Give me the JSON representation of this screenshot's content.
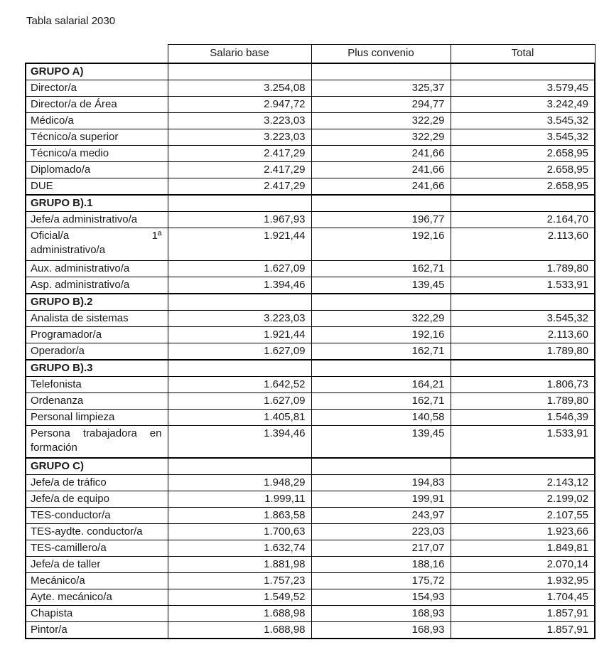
{
  "page": {
    "title": "Tabla salarial 2030"
  },
  "colors": {
    "background": "#ffffff",
    "text": "#1a1a1a",
    "border": "#000000"
  },
  "table": {
    "columns": [
      "Salario base",
      "Plus convenio",
      "Total"
    ],
    "sections": [
      {
        "group": "GRUPO A)",
        "rows": [
          {
            "label": "Director/a",
            "base": "3.254,08",
            "plus": "325,37",
            "total": "3.579,45"
          },
          {
            "label": "Director/a de Área",
            "base": "2.947,72",
            "plus": "294,77",
            "total": "3.242,49"
          },
          {
            "label": "Médico/a",
            "base": "3.223,03",
            "plus": "322,29",
            "total": "3.545,32"
          },
          {
            "label": "Técnico/a superior",
            "base": "3.223,03",
            "plus": "322,29",
            "total": "3.545,32"
          },
          {
            "label": "Técnico/a medio",
            "base": "2.417,29",
            "plus": "241,66",
            "total": "2.658,95"
          },
          {
            "label": "Diplomado/a",
            "base": "2.417,29",
            "plus": "241,66",
            "total": "2.658,95"
          },
          {
            "label": "DUE",
            "base": "2.417,29",
            "plus": "241,66",
            "total": "2.658,95"
          }
        ]
      },
      {
        "group": "GRUPO B).1",
        "rows": [
          {
            "label": "Jefe/a administrativo/a",
            "base": "1.967,93",
            "plus": "196,77",
            "total": "2.164,70"
          },
          {
            "label": "Oficial/a 1ª administrativo/a",
            "label_lines": [
              "Oficial/a 1ª",
              "administrativo/a"
            ],
            "base": "1.921,44",
            "plus": "192,16",
            "total": "2.113,60"
          },
          {
            "label": "Aux. administrativo/a",
            "base": "1.627,09",
            "plus": "162,71",
            "total": "1.789,80"
          },
          {
            "label": "Asp. administrativo/a",
            "base": "1.394,46",
            "plus": "139,45",
            "total": "1.533,91"
          }
        ]
      },
      {
        "group": "GRUPO B).2",
        "rows": [
          {
            "label": "Analista de sistemas",
            "base": "3.223,03",
            "plus": "322,29",
            "total": "3.545,32"
          },
          {
            "label": "Programador/a",
            "base": "1.921,44",
            "plus": "192,16",
            "total": "2.113,60"
          },
          {
            "label": "Operador/a",
            "base": "1.627,09",
            "plus": "162,71",
            "total": "1.789,80"
          }
        ]
      },
      {
        "group": "GRUPO B).3",
        "rows": [
          {
            "label": "Telefonista",
            "base": "1.642,52",
            "plus": "164,21",
            "total": "1.806,73"
          },
          {
            "label": "Ordenanza",
            "base": "1.627,09",
            "plus": "162,71",
            "total": "1.789,80"
          },
          {
            "label": "Personal limpieza",
            "base": "1.405,81",
            "plus": "140,58",
            "total": "1.546,39"
          },
          {
            "label": "Persona trabajadora en formación",
            "label_lines": [
              "Persona trabajadora en",
              "formación"
            ],
            "base": "1.394,46",
            "plus": "139,45",
            "total": "1.533,91"
          }
        ]
      },
      {
        "group": "GRUPO C)",
        "rows": [
          {
            "label": "Jefe/a de tráfico",
            "base": "1.948,29",
            "plus": "194,83",
            "total": "2.143,12"
          },
          {
            "label": "Jefe/a de equipo",
            "base": "1.999,11",
            "plus": "199,91",
            "total": "2.199,02"
          },
          {
            "label": "TES-conductor/a",
            "base": "1.863,58",
            "plus": "243,97",
            "total": "2.107,55"
          },
          {
            "label": "TES-aydte. conductor/a",
            "base": "1.700,63",
            "plus": "223,03",
            "total": "1.923,66"
          },
          {
            "label": "TES-camillero/a",
            "base": "1.632,74",
            "plus": "217,07",
            "total": "1.849,81"
          },
          {
            "label": "Jefe/a de taller",
            "base": "1.881,98",
            "plus": "188,16",
            "total": "2.070,14"
          },
          {
            "label": "Mecánico/a",
            "base": "1.757,23",
            "plus": "175,72",
            "total": "1.932,95"
          },
          {
            "label": "Ayte. mecánico/a",
            "base": "1.549,52",
            "plus": "154,93",
            "total": "1.704,45"
          },
          {
            "label": "Chapista",
            "base": "1.688,98",
            "plus": "168,93",
            "total": "1.857,91"
          },
          {
            "label": "Pintor/a",
            "base": "1.688,98",
            "plus": "168,93",
            "total": "1.857,91"
          }
        ]
      }
    ]
  }
}
